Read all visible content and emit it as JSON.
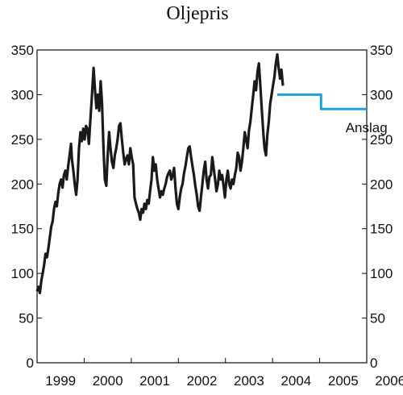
{
  "chart_data": {
    "type": "line",
    "title": "Oljepris",
    "xlabel": "",
    "ylabel": "",
    "xlim": [
      1999.0,
      2006.0
    ],
    "ylim": [
      0,
      350
    ],
    "y_ticks": [
      0,
      50,
      100,
      150,
      200,
      250,
      300,
      350
    ],
    "x_ticks": [
      {
        "label": "1999",
        "at": 1999.5
      },
      {
        "label": "2000",
        "at": 2000.5
      },
      {
        "label": "2001",
        "at": 2001.5
      },
      {
        "label": "2002",
        "at": 2002.5
      },
      {
        "label": "2003",
        "at": 2003.5
      },
      {
        "label": "2004",
        "at": 2004.5
      },
      {
        "label": "2005",
        "at": 2005.5
      },
      {
        "label": "2006",
        "at": 2006.5
      }
    ],
    "grid": false,
    "right_axis": true,
    "annotations": [
      {
        "text": "Anslag",
        "x": 2005.55,
        "y": 258
      }
    ],
    "series": [
      {
        "color": "#1a1a1a",
        "points": [
          [
            1999.0,
            80
          ],
          [
            1999.03,
            85
          ],
          [
            1999.06,
            78
          ],
          [
            1999.09,
            92
          ],
          [
            1999.12,
            100
          ],
          [
            1999.15,
            110
          ],
          [
            1999.18,
            122
          ],
          [
            1999.21,
            118
          ],
          [
            1999.24,
            128
          ],
          [
            1999.27,
            140
          ],
          [
            1999.3,
            152
          ],
          [
            1999.33,
            158
          ],
          [
            1999.36,
            172
          ],
          [
            1999.39,
            180
          ],
          [
            1999.42,
            175
          ],
          [
            1999.45,
            190
          ],
          [
            1999.48,
            200
          ],
          [
            1999.51,
            205
          ],
          [
            1999.54,
            196
          ],
          [
            1999.57,
            210
          ],
          [
            1999.6,
            215
          ],
          [
            1999.63,
            205
          ],
          [
            1999.66,
            220
          ],
          [
            1999.69,
            232
          ],
          [
            1999.72,
            245
          ],
          [
            1999.74,
            228
          ],
          [
            1999.77,
            215
          ],
          [
            1999.8,
            200
          ],
          [
            1999.83,
            188
          ],
          [
            1999.86,
            205
          ],
          [
            1999.89,
            240
          ],
          [
            1999.92,
            258
          ],
          [
            1999.95,
            248
          ],
          [
            1999.98,
            262
          ],
          [
            2000.01,
            250
          ],
          [
            2000.04,
            265
          ],
          [
            2000.07,
            262
          ],
          [
            2000.1,
            245
          ],
          [
            2000.13,
            270
          ],
          [
            2000.16,
            295
          ],
          [
            2000.2,
            330
          ],
          [
            2000.23,
            305
          ],
          [
            2000.26,
            285
          ],
          [
            2000.29,
            300
          ],
          [
            2000.32,
            282
          ],
          [
            2000.35,
            315
          ],
          [
            2000.38,
            290
          ],
          [
            2000.41,
            240
          ],
          [
            2000.44,
            205
          ],
          [
            2000.47,
            198
          ],
          [
            2000.5,
            232
          ],
          [
            2000.53,
            258
          ],
          [
            2000.56,
            240
          ],
          [
            2000.59,
            225
          ],
          [
            2000.62,
            218
          ],
          [
            2000.65,
            232
          ],
          [
            2000.68,
            240
          ],
          [
            2000.71,
            250
          ],
          [
            2000.74,
            265
          ],
          [
            2000.77,
            268
          ],
          [
            2000.8,
            250
          ],
          [
            2000.83,
            235
          ],
          [
            2000.86,
            222
          ],
          [
            2000.89,
            228
          ],
          [
            2000.92,
            232
          ],
          [
            2000.95,
            222
          ],
          [
            2000.98,
            240
          ],
          [
            2001.01,
            230
          ],
          [
            2001.04,
            222
          ],
          [
            2001.07,
            185
          ],
          [
            2001.1,
            178
          ],
          [
            2001.13,
            172
          ],
          [
            2001.16,
            168
          ],
          [
            2001.19,
            160
          ],
          [
            2001.22,
            172
          ],
          [
            2001.25,
            168
          ],
          [
            2001.28,
            178
          ],
          [
            2001.31,
            172
          ],
          [
            2001.34,
            182
          ],
          [
            2001.37,
            178
          ],
          [
            2001.4,
            192
          ],
          [
            2001.43,
            205
          ],
          [
            2001.46,
            230
          ],
          [
            2001.49,
            215
          ],
          [
            2001.52,
            222
          ],
          [
            2001.55,
            205
          ],
          [
            2001.58,
            195
          ],
          [
            2001.61,
            185
          ],
          [
            2001.64,
            192
          ],
          [
            2001.67,
            188
          ],
          [
            2001.7,
            195
          ],
          [
            2001.73,
            200
          ],
          [
            2001.76,
            208
          ],
          [
            2001.79,
            212
          ],
          [
            2001.82,
            215
          ],
          [
            2001.85,
            205
          ],
          [
            2001.88,
            210
          ],
          [
            2001.91,
            218
          ],
          [
            2001.94,
            195
          ],
          [
            2001.97,
            178
          ],
          [
            2002.0,
            172
          ],
          [
            2002.03,
            185
          ],
          [
            2002.06,
            195
          ],
          [
            2002.09,
            200
          ],
          [
            2002.12,
            212
          ],
          [
            2002.15,
            220
          ],
          [
            2002.18,
            230
          ],
          [
            2002.21,
            240
          ],
          [
            2002.24,
            242
          ],
          [
            2002.27,
            230
          ],
          [
            2002.3,
            220
          ],
          [
            2002.33,
            210
          ],
          [
            2002.36,
            198
          ],
          [
            2002.39,
            188
          ],
          [
            2002.42,
            175
          ],
          [
            2002.45,
            170
          ],
          [
            2002.48,
            185
          ],
          [
            2002.51,
            200
          ],
          [
            2002.54,
            215
          ],
          [
            2002.57,
            225
          ],
          [
            2002.6,
            205
          ],
          [
            2002.63,
            195
          ],
          [
            2002.66,
            208
          ],
          [
            2002.69,
            210
          ],
          [
            2002.72,
            230
          ],
          [
            2002.75,
            218
          ],
          [
            2002.78,
            205
          ],
          [
            2002.81,
            192
          ],
          [
            2002.84,
            200
          ],
          [
            2002.87,
            215
          ],
          [
            2002.9,
            205
          ],
          [
            2002.93,
            210
          ],
          [
            2002.96,
            198
          ],
          [
            2002.99,
            185
          ],
          [
            2003.02,
            205
          ],
          [
            2003.05,
            215
          ],
          [
            2003.08,
            200
          ],
          [
            2003.11,
            195
          ],
          [
            2003.14,
            205
          ],
          [
            2003.17,
            200
          ],
          [
            2003.2,
            210
          ],
          [
            2003.23,
            218
          ],
          [
            2003.26,
            235
          ],
          [
            2003.29,
            230
          ],
          [
            2003.32,
            215
          ],
          [
            2003.35,
            225
          ],
          [
            2003.38,
            240
          ],
          [
            2003.41,
            258
          ],
          [
            2003.44,
            250
          ],
          [
            2003.47,
            240
          ],
          [
            2003.5,
            260
          ],
          [
            2003.53,
            270
          ],
          [
            2003.56,
            285
          ],
          [
            2003.59,
            300
          ],
          [
            2003.62,
            315
          ],
          [
            2003.65,
            305
          ],
          [
            2003.68,
            325
          ],
          [
            2003.71,
            335
          ],
          [
            2003.74,
            310
          ],
          [
            2003.77,
            285
          ],
          [
            2003.8,
            260
          ],
          [
            2003.83,
            240
          ],
          [
            2003.86,
            232
          ],
          [
            2003.89,
            255
          ],
          [
            2003.92,
            270
          ],
          [
            2003.95,
            290
          ],
          [
            2003.98,
            300
          ],
          [
            2004.01,
            310
          ],
          [
            2004.04,
            320
          ],
          [
            2004.07,
            335
          ],
          [
            2004.1,
            345
          ],
          [
            2004.13,
            330
          ],
          [
            2004.16,
            318
          ],
          [
            2004.19,
            328
          ],
          [
            2004.22,
            310
          ]
        ]
      },
      {
        "color": "#1aa3dd",
        "points": [
          [
            2004.1,
            300
          ],
          [
            2005.03,
            300
          ],
          [
            2005.03,
            284
          ],
          [
            2006.0,
            284
          ]
        ]
      }
    ]
  }
}
